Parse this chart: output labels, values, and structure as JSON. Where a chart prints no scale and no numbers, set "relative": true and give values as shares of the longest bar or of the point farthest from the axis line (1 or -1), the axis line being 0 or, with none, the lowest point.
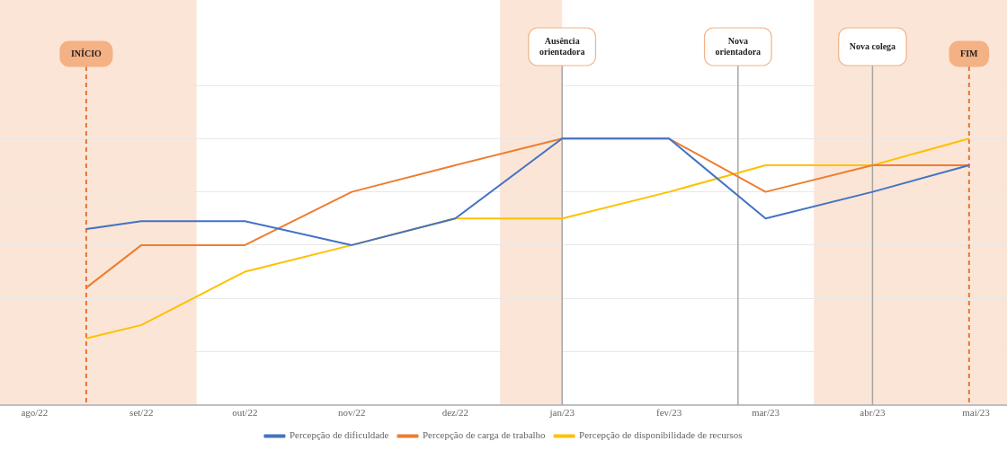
{
  "chart_data": {
    "type": "line",
    "relative": true,
    "grid": "y",
    "legend": "bottom",
    "marker": "none",
    "xlim": [
      "2022-07-22",
      "2023-05-10"
    ],
    "xticks": [
      {
        "value": "2022-08-01",
        "label": "ago/22"
      },
      {
        "value": "2022-09-01",
        "label": "set/22"
      },
      {
        "value": "2022-10-01",
        "label": "out/22"
      },
      {
        "value": "2022-11-01",
        "label": "nov/22"
      },
      {
        "value": "2022-12-01",
        "label": "dez/22"
      },
      {
        "value": "2023-01-01",
        "label": "jan/23"
      },
      {
        "value": "2023-02-01",
        "label": "fev/23"
      },
      {
        "value": "2023-03-01",
        "label": "mar/23"
      },
      {
        "value": "2023-04-01",
        "label": "abr/23"
      },
      {
        "value": "2023-05-01",
        "label": "mai/23"
      }
    ],
    "x": [
      "2022-08-16",
      "2022-09-01",
      "2022-10-01",
      "2022-11-01",
      "2022-12-01",
      "2023-01-01",
      "2023-02-01",
      "2023-03-01",
      "2023-04-01",
      "2023-04-29"
    ],
    "series": [
      {
        "name": "Percepção de dificuldade",
        "color": "#4472c4",
        "values": [
          0.66,
          0.69,
          0.69,
          0.6,
          0.7,
          1,
          1,
          0.7,
          0.8,
          0.9
        ]
      },
      {
        "name": "Percepção de carga de trabalho",
        "color": "#ed7d31",
        "values": [
          0.44,
          0.6,
          0.6,
          0.8,
          0.9,
          1,
          1,
          0.8,
          0.9,
          0.9
        ]
      },
      {
        "name": "Percepção de disponibilidade de recursos",
        "color": "#ffc000",
        "values": [
          0.25,
          0.3,
          0.5,
          0.6,
          0.7,
          0.7,
          0.8,
          0.9,
          0.9,
          1
        ]
      }
    ],
    "bands": [
      {
        "axis": "x",
        "from": "2022-07-22",
        "to": "2022-09-17",
        "color": "#fbe5d6"
      },
      {
        "axis": "x",
        "from": "2022-12-14",
        "to": "2023-01-01",
        "color": "#fbe5d6"
      },
      {
        "axis": "x",
        "from": "2023-03-15",
        "to": "2023-05-10",
        "color": "#fbe5d6"
      }
    ],
    "ref_lines": [
      {
        "axis": "x",
        "value": "2022-08-16",
        "label": "INÍCIO",
        "color": "#e2763a",
        "line_style": "dashed"
      },
      {
        "axis": "x",
        "value": "2023-01-01",
        "label": "Ausência orientadora",
        "color": "#a6a6a6",
        "line_style": "solid"
      },
      {
        "axis": "x",
        "value": "2023-02-21",
        "label": "Nova orientadora",
        "color": "#a6a6a6",
        "line_style": "solid"
      },
      {
        "axis": "x",
        "value": "2023-04-01",
        "label": "Nova colega",
        "color": "#a6a6a6",
        "line_style": "solid"
      },
      {
        "axis": "x",
        "value": "2023-04-29",
        "label": "FIM",
        "color": "#e2763a",
        "line_style": "dashed"
      }
    ]
  }
}
